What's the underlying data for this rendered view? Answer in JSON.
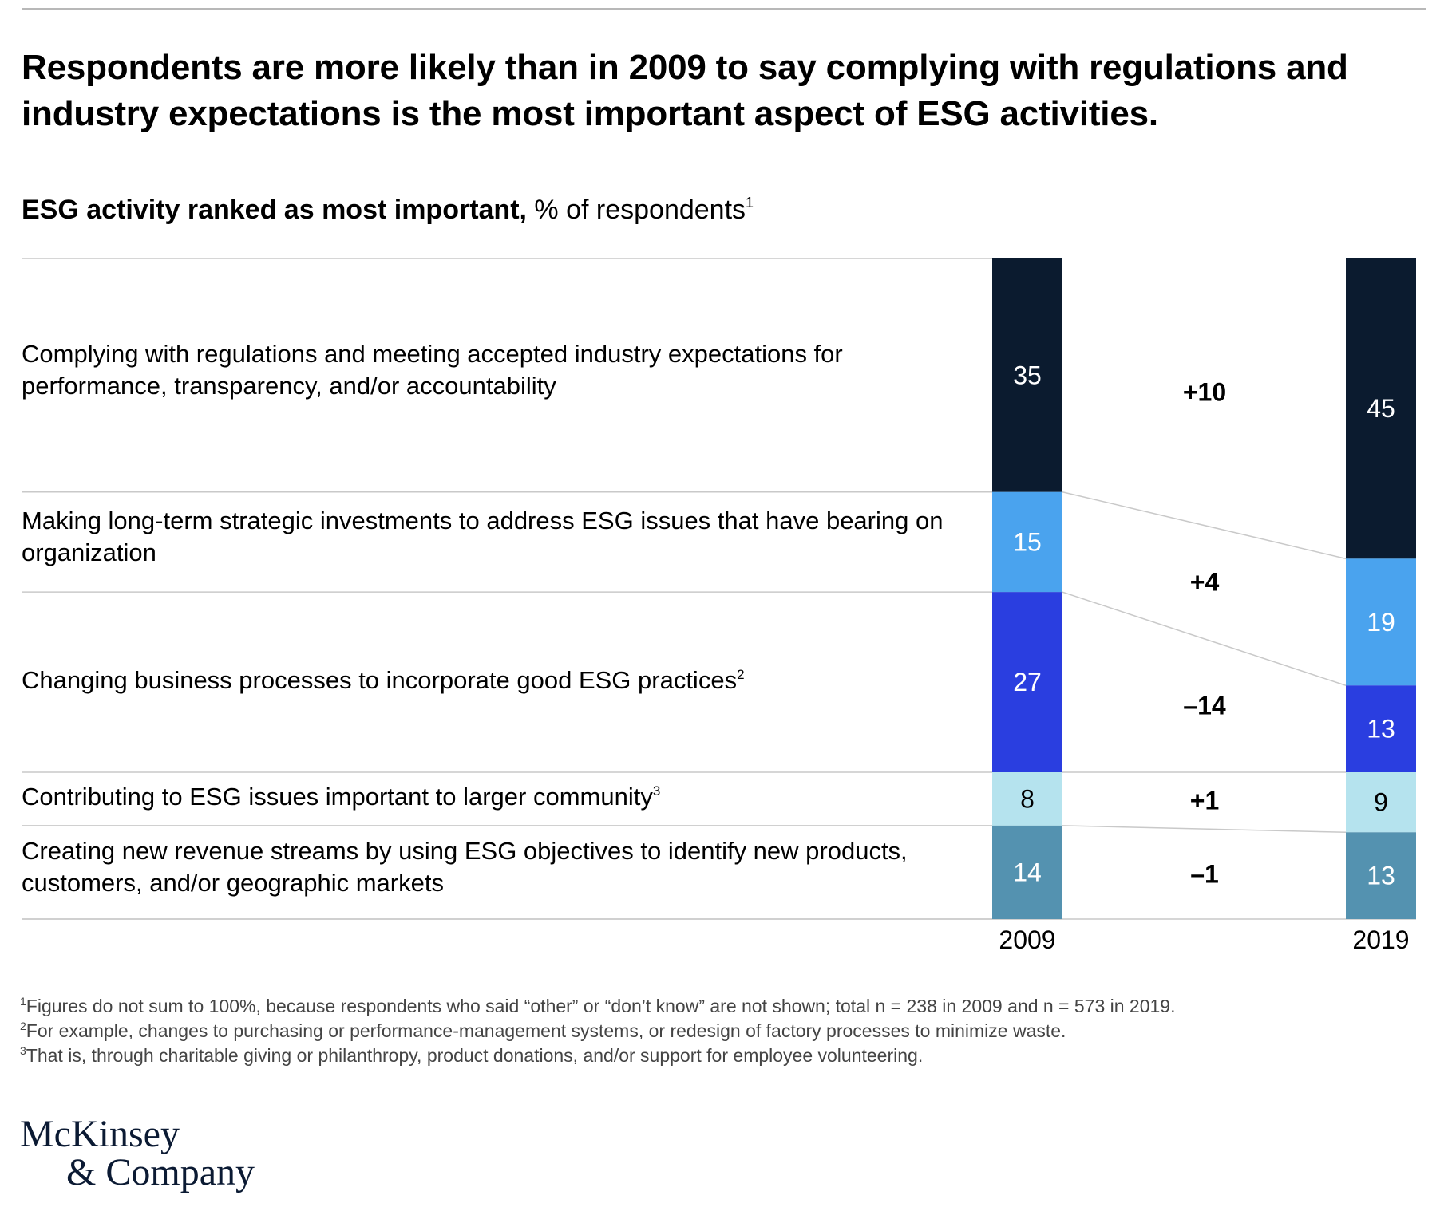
{
  "headline": "Respondents are more likely than in 2009 to say complying with regulations and industry expectations is the most important aspect of ESG activities.",
  "subtitle": {
    "bold": "ESG activity ranked as most important,",
    "normal": "% of respondents",
    "sup": "1"
  },
  "footnotes": [
    {
      "marker": "1",
      "text": "Figures do not sum to 100%, because respondents who said “other” or “don’t know” are not shown; total n = 238 in 2009 and n = 573 in 2019."
    },
    {
      "marker": "2",
      "text": "For example, changes to purchasing or performance-management systems, or redesign of factory processes to minimize waste."
    },
    {
      "marker": "3",
      "text": "That is, through charitable giving or philanthropy, product donations, and/or support for employee volunteering."
    }
  ],
  "logo": {
    "line1": "McKinsey",
    "line2": "& Company"
  },
  "chart_data": {
    "type": "bar",
    "stacked": true,
    "unit": "% of respondents",
    "categories": [
      "2009",
      "2019"
    ],
    "series": [
      {
        "name": "Complying with regulations and meeting accepted industry expectations for performance, transparency, and/or accountability",
        "sup": "",
        "values": [
          35,
          45
        ],
        "change": "+10",
        "color": "#0b1b2f",
        "label_color": "#ffffff"
      },
      {
        "name": "Making long-term strategic investments to address ESG issues that have bearing on organization",
        "sup": "",
        "values": [
          15,
          19
        ],
        "change": "+4",
        "color": "#4aa3ee",
        "label_color": "#ffffff"
      },
      {
        "name": "Changing business processes to incorporate good ESG practices",
        "sup": "2",
        "values": [
          27,
          13
        ],
        "change": "–14",
        "color": "#2a3ee0",
        "label_color": "#ffffff"
      },
      {
        "name": "Contributing to ESG issues important to larger community",
        "sup": "3",
        "values": [
          8,
          9
        ],
        "change": "+1",
        "color": "#b5e3ee",
        "label_color": "#000000"
      },
      {
        "name": "Creating new revenue streams by using ESG objectives to identify new products, customers, and/or geographic markets",
        "sup": "",
        "values": [
          14,
          13
        ],
        "change": "–1",
        "color": "#5492b0",
        "label_color": "#ffffff"
      }
    ]
  }
}
